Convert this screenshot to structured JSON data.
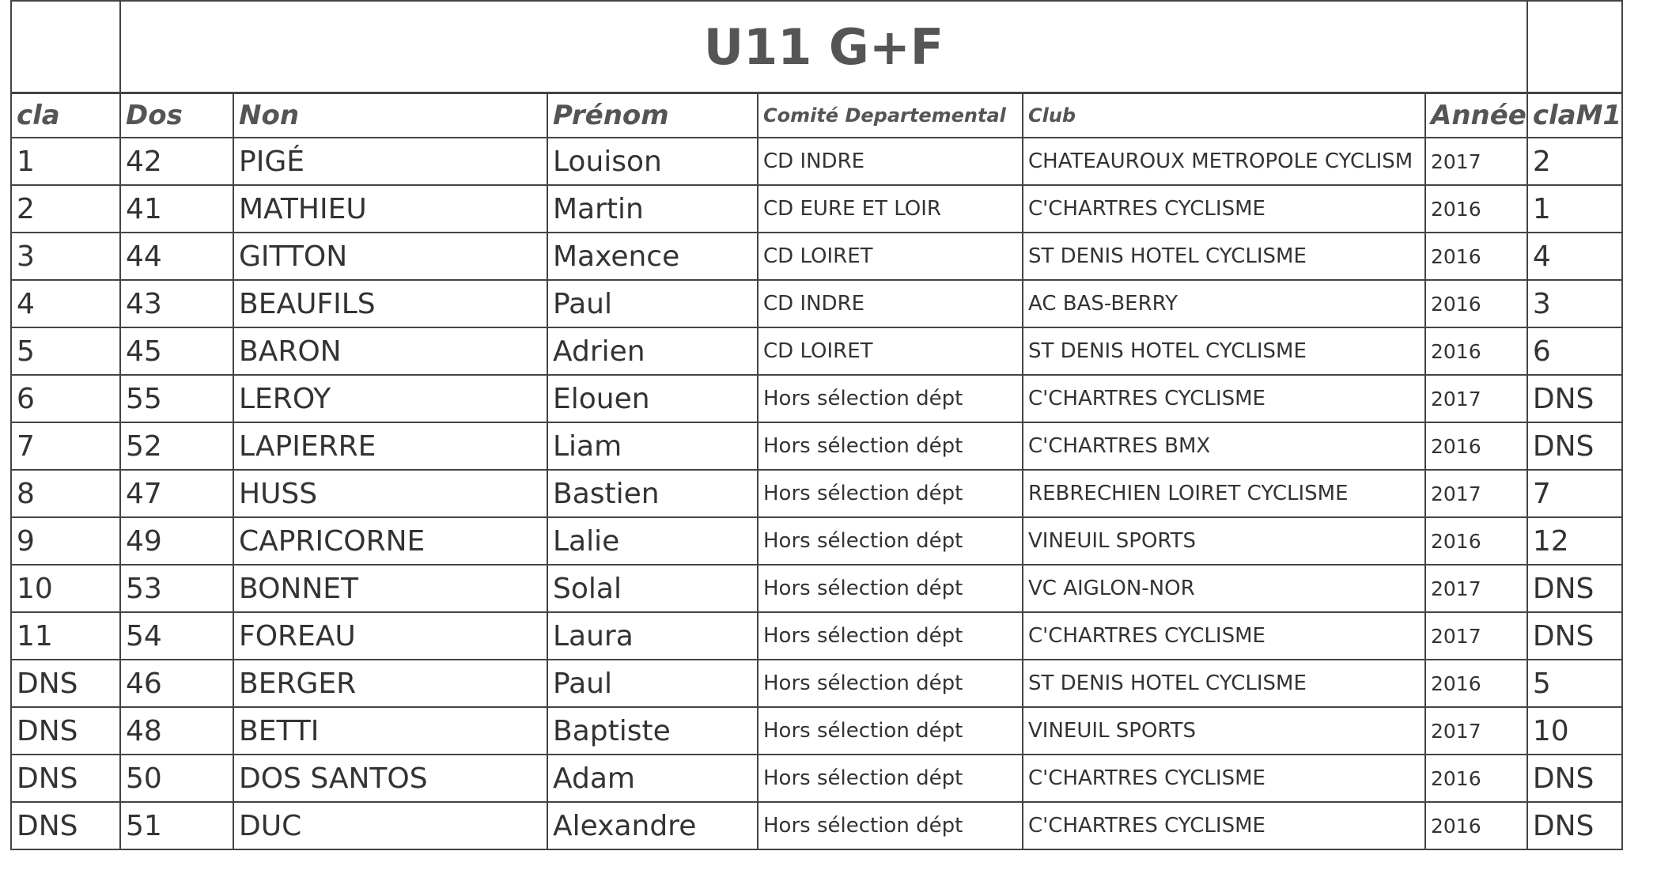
{
  "title": "U11 G+F",
  "table": {
    "headers": [
      "cla",
      "Dos",
      "Non",
      "Prénom",
      "Comité Departemental",
      "Club",
      "Année",
      "claM1"
    ],
    "rows": [
      [
        "1",
        "42",
        "PIGÉ",
        "Louison",
        "CD INDRE",
        "CHATEAUROUX METROPOLE CYCLISM",
        "2017",
        "2"
      ],
      [
        "2",
        "41",
        "MATHIEU",
        "Martin",
        "CD EURE ET LOIR",
        "C'CHARTRES CYCLISME",
        "2016",
        "1"
      ],
      [
        "3",
        "44",
        "GITTON",
        "Maxence",
        "CD LOIRET",
        "ST DENIS HOTEL CYCLISME",
        "2016",
        "4"
      ],
      [
        "4",
        "43",
        "BEAUFILS",
        "Paul",
        "CD INDRE",
        "AC BAS-BERRY",
        "2016",
        "3"
      ],
      [
        "5",
        "45",
        "BARON",
        "Adrien",
        "CD LOIRET",
        "ST DENIS HOTEL CYCLISME",
        "2016",
        "6"
      ],
      [
        "6",
        "55",
        "LEROY",
        "Elouen",
        "Hors sélection dépt",
        "C'CHARTRES CYCLISME",
        "2017",
        "DNS"
      ],
      [
        "7",
        "52",
        "LAPIERRE",
        "Liam",
        "Hors sélection dépt",
        "C'CHARTRES BMX",
        "2016",
        "DNS"
      ],
      [
        "8",
        "47",
        "HUSS",
        "Bastien",
        "Hors sélection dépt",
        "REBRECHIEN LOIRET CYCLISME",
        "2017",
        "7"
      ],
      [
        "9",
        "49",
        "CAPRICORNE",
        "Lalie",
        "Hors sélection dépt",
        "VINEUIL SPORTS",
        "2016",
        "12"
      ],
      [
        "10",
        "53",
        "BONNET",
        "Solal",
        "Hors sélection dépt",
        "VC AIGLON-NOR",
        "2017",
        "DNS"
      ],
      [
        "11",
        "54",
        "FOREAU",
        "Laura",
        "Hors sélection dépt",
        "C'CHARTRES CYCLISME",
        "2017",
        "DNS"
      ],
      [
        "DNS",
        "46",
        "BERGER",
        "Paul",
        "Hors sélection dépt",
        "ST DENIS HOTEL CYCLISME",
        "2016",
        "5"
      ],
      [
        "DNS",
        "48",
        "BETTI",
        "Baptiste",
        "Hors sélection dépt",
        "VINEUIL SPORTS",
        "2017",
        "10"
      ],
      [
        "DNS",
        "50",
        "DOS SANTOS",
        "Adam",
        "Hors sélection dépt",
        "C'CHARTRES CYCLISME",
        "2016",
        "DNS"
      ],
      [
        "DNS",
        "51",
        "DUC",
        "Alexandre",
        "Hors sélection dépt",
        "C'CHARTRES CYCLISME",
        "2016",
        "DNS"
      ]
    ]
  }
}
